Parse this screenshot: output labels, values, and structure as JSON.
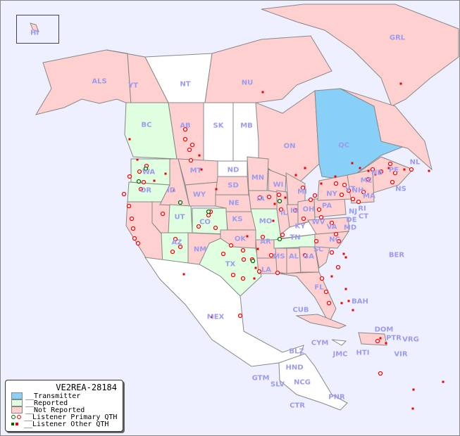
{
  "map": {
    "colors": {
      "ocean": "#eef0ff",
      "transmitter": "#88d0f8",
      "reported": "#e0ffe0",
      "not_reported": "#ffd0d0",
      "no_data": "#ffffff",
      "listener_primary": "#ff0000",
      "listener_primary_alt": "#006600",
      "listener_other": "#ee0000",
      "label": "#9b9bf0"
    },
    "regions": [
      {
        "label": "HI",
        "status": "not_reported"
      },
      {
        "label": "ALS",
        "status": "not_reported"
      },
      {
        "label": "YT",
        "status": "not_reported"
      },
      {
        "label": "NT",
        "status": "none"
      },
      {
        "label": "NU",
        "status": "not_reported"
      },
      {
        "label": "GRL",
        "status": "not_reported"
      },
      {
        "label": "BC",
        "status": "reported"
      },
      {
        "label": "AB",
        "status": "not_reported"
      },
      {
        "label": "SK",
        "status": "none"
      },
      {
        "label": "MB",
        "status": "none"
      },
      {
        "label": "ON",
        "status": "not_reported"
      },
      {
        "label": "QC",
        "status": "transmitter"
      },
      {
        "label": "NL",
        "status": "not_reported"
      },
      {
        "label": "NB",
        "status": "not_reported"
      },
      {
        "label": "PE",
        "status": "not_reported"
      },
      {
        "label": "NS",
        "status": "not_reported"
      },
      {
        "label": "WA",
        "status": "reported"
      },
      {
        "label": "OR",
        "status": "reported"
      },
      {
        "label": "CA",
        "status": "not_reported"
      },
      {
        "label": "NV",
        "status": "not_reported"
      },
      {
        "label": "ID",
        "status": "not_reported"
      },
      {
        "label": "MT",
        "status": "not_reported"
      },
      {
        "label": "WY",
        "status": "not_reported"
      },
      {
        "label": "UT",
        "status": "reported"
      },
      {
        "label": "CO",
        "status": "reported"
      },
      {
        "label": "AZ",
        "status": "reported"
      },
      {
        "label": "NM",
        "status": "not_reported"
      },
      {
        "label": "ND",
        "status": "none"
      },
      {
        "label": "SD",
        "status": "not_reported"
      },
      {
        "label": "NE",
        "status": "not_reported"
      },
      {
        "label": "KS",
        "status": "not_reported"
      },
      {
        "label": "OK",
        "status": "not_reported"
      },
      {
        "label": "TX",
        "status": "reported"
      },
      {
        "label": "MN",
        "status": "not_reported"
      },
      {
        "label": "IA",
        "status": "not_reported"
      },
      {
        "label": "MO",
        "status": "reported"
      },
      {
        "label": "AR",
        "status": "not_reported"
      },
      {
        "label": "LA",
        "status": "not_reported"
      },
      {
        "label": "WI",
        "status": "not_reported"
      },
      {
        "label": "IL",
        "status": "not_reported"
      },
      {
        "label": "MI",
        "status": "not_reported"
      },
      {
        "label": "IN",
        "status": "not_reported"
      },
      {
        "label": "OH",
        "status": "not_reported"
      },
      {
        "label": "KY",
        "status": "none"
      },
      {
        "label": "TN",
        "status": "reported"
      },
      {
        "label": "MS",
        "status": "not_reported"
      },
      {
        "label": "AL",
        "status": "not_reported"
      },
      {
        "label": "GA",
        "status": "not_reported"
      },
      {
        "label": "FL",
        "status": "not_reported"
      },
      {
        "label": "SC",
        "status": "not_reported"
      },
      {
        "label": "NC",
        "status": "not_reported"
      },
      {
        "label": "VA",
        "status": "not_reported"
      },
      {
        "label": "WV",
        "status": "not_reported"
      },
      {
        "label": "MD",
        "status": "not_reported"
      },
      {
        "label": "DE",
        "status": "not_reported"
      },
      {
        "label": "PA",
        "status": "not_reported"
      },
      {
        "label": "NJ",
        "status": "not_reported"
      },
      {
        "label": "NY",
        "status": "not_reported"
      },
      {
        "label": "CT",
        "status": "not_reported"
      },
      {
        "label": "RI",
        "status": "not_reported"
      },
      {
        "label": "MA",
        "status": "not_reported"
      },
      {
        "label": "VT",
        "status": "not_reported"
      },
      {
        "label": "NH",
        "status": "not_reported"
      },
      {
        "label": "ME",
        "status": "not_reported"
      },
      {
        "label": "MEX",
        "status": "none"
      },
      {
        "label": "CUB",
        "status": "not_reported"
      },
      {
        "label": "BAH",
        "status": "none"
      },
      {
        "label": "BER",
        "status": "none"
      },
      {
        "label": "DOM",
        "status": "not_reported"
      },
      {
        "label": "PTR",
        "status": "not_reported"
      },
      {
        "label": "VRG",
        "status": "none"
      },
      {
        "label": "VIR",
        "status": "none"
      },
      {
        "label": "HTI",
        "status": "none"
      },
      {
        "label": "JMC",
        "status": "none"
      },
      {
        "label": "CYM",
        "status": "not_reported"
      },
      {
        "label": "BLZ",
        "status": "none"
      },
      {
        "label": "HND",
        "status": "none"
      },
      {
        "label": "GTM",
        "status": "none"
      },
      {
        "label": "SLV",
        "status": "none"
      },
      {
        "label": "NCG",
        "status": "none"
      },
      {
        "label": "CTR",
        "status": "none"
      },
      {
        "label": "PNR",
        "status": "none"
      }
    ]
  },
  "legend": {
    "title": "VE2REA-28184",
    "items": [
      {
        "label": "__Transmitter",
        "kind": "swatch",
        "color": "#88d0f8"
      },
      {
        "label": "__Reported",
        "kind": "swatch",
        "color": "#e0ffe0"
      },
      {
        "label": "__Not Reported",
        "kind": "swatch",
        "color": "#ffd0d0"
      },
      {
        "label": "__Listener Primary QTH",
        "kind": "circles"
      },
      {
        "label": "__Listener Other QTH",
        "kind": "squares"
      }
    ]
  }
}
